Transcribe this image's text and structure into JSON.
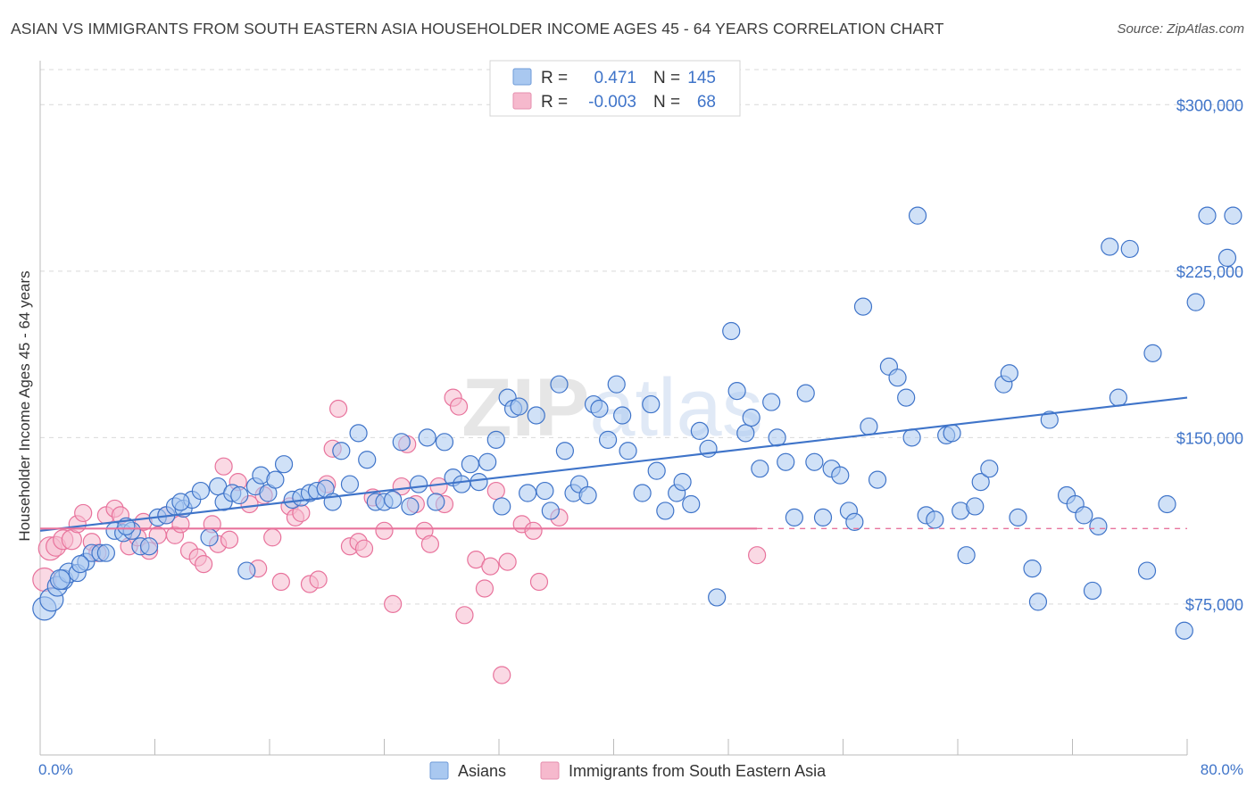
{
  "title": "ASIAN VS IMMIGRANTS FROM SOUTH EASTERN ASIA HOUSEHOLDER INCOME AGES 45 - 64 YEARS CORRELATION CHART",
  "source": "Source: ZipAtlas.com",
  "watermark": "ZIPatlas",
  "colors": {
    "blue": "#3f74c9",
    "blue_fill": "#a9c8f0",
    "pink": "#e8739c",
    "pink_fill": "#f6b9cd",
    "grid": "#d9d9d9"
  },
  "legend": {
    "rows": [
      {
        "r_label": "R =",
        "r_value": "0.471",
        "n_label": "N =",
        "n_value": "145"
      },
      {
        "r_label": "R =",
        "r_value": "-0.003",
        "n_label": "N =",
        "n_value": "68"
      }
    ]
  },
  "bottom_legend": [
    "Asians",
    "Immigrants from South Eastern Asia"
  ],
  "chart_data": {
    "type": "scatter",
    "title": "ASIAN VS IMMIGRANTS FROM SOUTH EASTERN ASIA HOUSEHOLDER INCOME AGES 45 - 64 YEARS CORRELATION CHART",
    "xlabel": "",
    "ylabel": "Householder Income Ages 45 - 64 years",
    "xlim": [
      0,
      80
    ],
    "ylim": [
      7000,
      315000
    ],
    "x_tick_labels": [
      "0.0%",
      "80.0%"
    ],
    "y_ticks": [
      75000,
      150000,
      225000,
      300000
    ],
    "y_tick_labels": [
      "$75,000",
      "$150,000",
      "$225,000",
      "$300,000"
    ],
    "grid": true,
    "legend_position": "top-center",
    "series": [
      {
        "name": "Asians",
        "R": 0.471,
        "N": 145,
        "trend": {
          "x": [
            0,
            80
          ],
          "y": [
            108000,
            168000
          ]
        },
        "points": [
          [
            0.3,
            73000
          ],
          [
            0.8,
            77000
          ],
          [
            1.2,
            83000
          ],
          [
            1.6,
            86000
          ],
          [
            2.0,
            89000
          ],
          [
            2.6,
            89000
          ],
          [
            3.2,
            94000
          ],
          [
            3.6,
            98000
          ],
          [
            4.2,
            98000
          ],
          [
            4.6,
            98000
          ],
          [
            5.2,
            108000
          ],
          [
            5.8,
            107000
          ],
          [
            6.4,
            108000
          ],
          [
            7.0,
            101000
          ],
          [
            7.6,
            101000
          ],
          [
            8.2,
            114000
          ],
          [
            8.8,
            115000
          ],
          [
            9.4,
            119000
          ],
          [
            10.0,
            118000
          ],
          [
            10.6,
            122000
          ],
          [
            11.2,
            126000
          ],
          [
            11.8,
            105000
          ],
          [
            12.4,
            128000
          ],
          [
            12.8,
            121000
          ],
          [
            13.4,
            125000
          ],
          [
            13.9,
            124000
          ],
          [
            14.4,
            90000
          ],
          [
            15.0,
            128000
          ],
          [
            15.4,
            133000
          ],
          [
            15.9,
            125000
          ],
          [
            16.4,
            131000
          ],
          [
            17.0,
            138000
          ],
          [
            17.6,
            122000
          ],
          [
            18.2,
            123000
          ],
          [
            18.8,
            125000
          ],
          [
            19.3,
            126000
          ],
          [
            19.9,
            127000
          ],
          [
            20.4,
            121000
          ],
          [
            21.0,
            144000
          ],
          [
            21.6,
            129000
          ],
          [
            22.2,
            152000
          ],
          [
            22.8,
            140000
          ],
          [
            23.4,
            121000
          ],
          [
            24.0,
            121000
          ],
          [
            24.6,
            122000
          ],
          [
            25.2,
            148000
          ],
          [
            25.8,
            119000
          ],
          [
            26.4,
            129000
          ],
          [
            27.0,
            150000
          ],
          [
            27.6,
            121000
          ],
          [
            28.2,
            148000
          ],
          [
            28.8,
            132000
          ],
          [
            29.4,
            129000
          ],
          [
            30.0,
            138000
          ],
          [
            30.6,
            130000
          ],
          [
            31.2,
            139000
          ],
          [
            31.8,
            149000
          ],
          [
            32.2,
            119000
          ],
          [
            32.6,
            168000
          ],
          [
            33.0,
            163000
          ],
          [
            33.4,
            164000
          ],
          [
            34.0,
            125000
          ],
          [
            34.6,
            160000
          ],
          [
            35.2,
            126000
          ],
          [
            35.6,
            117000
          ],
          [
            36.2,
            174000
          ],
          [
            36.6,
            144000
          ],
          [
            37.2,
            125000
          ],
          [
            37.6,
            129000
          ],
          [
            38.2,
            124000
          ],
          [
            38.6,
            165000
          ],
          [
            39.0,
            163000
          ],
          [
            39.6,
            149000
          ],
          [
            40.2,
            174000
          ],
          [
            40.6,
            160000
          ],
          [
            41.0,
            144000
          ],
          [
            42.0,
            125000
          ],
          [
            42.6,
            165000
          ],
          [
            43.0,
            135000
          ],
          [
            43.6,
            117000
          ],
          [
            44.4,
            125000
          ],
          [
            44.8,
            130000
          ],
          [
            45.4,
            120000
          ],
          [
            46.0,
            153000
          ],
          [
            46.6,
            145000
          ],
          [
            47.2,
            78000
          ],
          [
            48.2,
            198000
          ],
          [
            48.6,
            171000
          ],
          [
            49.2,
            152000
          ],
          [
            49.6,
            159000
          ],
          [
            50.2,
            136000
          ],
          [
            51.0,
            166000
          ],
          [
            51.4,
            150000
          ],
          [
            52.0,
            139000
          ],
          [
            52.6,
            114000
          ],
          [
            53.4,
            170000
          ],
          [
            54.0,
            139000
          ],
          [
            54.6,
            114000
          ],
          [
            55.2,
            136000
          ],
          [
            55.8,
            133000
          ],
          [
            56.4,
            117000
          ],
          [
            56.8,
            112000
          ],
          [
            57.4,
            209000
          ],
          [
            57.8,
            155000
          ],
          [
            58.4,
            131000
          ],
          [
            59.2,
            182000
          ],
          [
            59.8,
            177000
          ],
          [
            60.4,
            168000
          ],
          [
            60.8,
            150000
          ],
          [
            61.2,
            250000
          ],
          [
            61.8,
            115000
          ],
          [
            62.4,
            113000
          ],
          [
            63.2,
            151000
          ],
          [
            63.6,
            152000
          ],
          [
            64.2,
            117000
          ],
          [
            64.6,
            97000
          ],
          [
            65.2,
            119000
          ],
          [
            65.6,
            130000
          ],
          [
            66.2,
            136000
          ],
          [
            67.2,
            174000
          ],
          [
            67.6,
            179000
          ],
          [
            68.2,
            114000
          ],
          [
            69.2,
            91000
          ],
          [
            69.6,
            76000
          ],
          [
            70.4,
            158000
          ],
          [
            71.6,
            124000
          ],
          [
            72.2,
            120000
          ],
          [
            72.8,
            115000
          ],
          [
            73.4,
            81000
          ],
          [
            73.8,
            110000
          ],
          [
            74.6,
            236000
          ],
          [
            75.2,
            168000
          ],
          [
            76.0,
            235000
          ],
          [
            77.2,
            90000
          ],
          [
            77.6,
            188000
          ],
          [
            78.6,
            120000
          ],
          [
            79.8,
            63000
          ],
          [
            80.6,
            211000
          ],
          [
            81.4,
            250000
          ],
          [
            82.8,
            231000
          ],
          [
            83.2,
            250000
          ],
          [
            1.4,
            86000
          ],
          [
            2.8,
            93000
          ],
          [
            6.0,
            110000
          ],
          [
            9.8,
            121000
          ]
        ]
      },
      {
        "name": "Immigrants from South Eastern Asia",
        "R": -0.003,
        "N": 68,
        "trend": {
          "x": [
            0,
            50
          ],
          "y": [
            109000,
            109000
          ]
        },
        "points": [
          [
            0.3,
            86000
          ],
          [
            0.7,
            100000
          ],
          [
            1.1,
            101000
          ],
          [
            1.6,
            104000
          ],
          [
            2.2,
            104000
          ],
          [
            2.6,
            111000
          ],
          [
            3.0,
            116000
          ],
          [
            3.6,
            103000
          ],
          [
            4.0,
            98000
          ],
          [
            4.6,
            115000
          ],
          [
            5.2,
            118000
          ],
          [
            5.6,
            115000
          ],
          [
            6.2,
            101000
          ],
          [
            6.8,
            105000
          ],
          [
            7.2,
            112000
          ],
          [
            7.6,
            99000
          ],
          [
            8.2,
            106000
          ],
          [
            8.8,
            115000
          ],
          [
            9.4,
            106000
          ],
          [
            9.8,
            111000
          ],
          [
            10.4,
            99000
          ],
          [
            11.0,
            96000
          ],
          [
            11.4,
            93000
          ],
          [
            12.0,
            111000
          ],
          [
            12.4,
            102000
          ],
          [
            12.8,
            137000
          ],
          [
            13.2,
            104000
          ],
          [
            13.8,
            130000
          ],
          [
            14.6,
            120000
          ],
          [
            15.2,
            91000
          ],
          [
            15.6,
            124000
          ],
          [
            16.2,
            105000
          ],
          [
            16.8,
            85000
          ],
          [
            17.4,
            119000
          ],
          [
            17.8,
            114000
          ],
          [
            18.2,
            116000
          ],
          [
            18.8,
            84000
          ],
          [
            19.4,
            86000
          ],
          [
            20.0,
            129000
          ],
          [
            20.4,
            145000
          ],
          [
            20.8,
            163000
          ],
          [
            21.6,
            101000
          ],
          [
            22.2,
            103000
          ],
          [
            22.6,
            100000
          ],
          [
            23.2,
            123000
          ],
          [
            24.0,
            108000
          ],
          [
            24.6,
            75000
          ],
          [
            25.2,
            128000
          ],
          [
            25.6,
            147000
          ],
          [
            26.2,
            120000
          ],
          [
            26.8,
            108000
          ],
          [
            27.2,
            102000
          ],
          [
            27.8,
            128000
          ],
          [
            28.2,
            120000
          ],
          [
            28.8,
            168000
          ],
          [
            29.2,
            164000
          ],
          [
            29.6,
            70000
          ],
          [
            30.4,
            95000
          ],
          [
            31.0,
            82000
          ],
          [
            31.4,
            92000
          ],
          [
            31.8,
            126000
          ],
          [
            32.2,
            43000
          ],
          [
            32.6,
            94000
          ],
          [
            33.6,
            111000
          ],
          [
            34.4,
            108000
          ],
          [
            34.8,
            85000
          ],
          [
            36.2,
            114000
          ],
          [
            50.0,
            97000
          ]
        ]
      }
    ]
  }
}
